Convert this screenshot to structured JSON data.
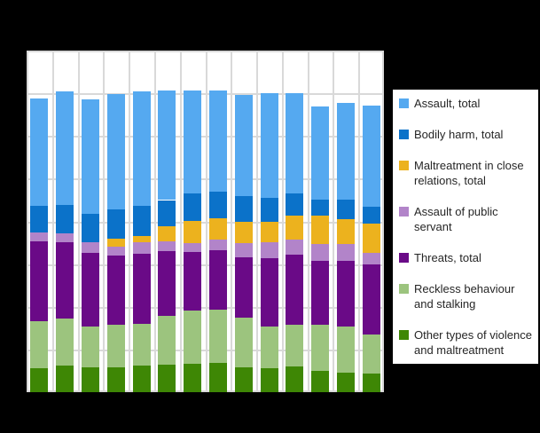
{
  "canvas": {
    "background_color": "#000000",
    "plot_background_color": "#ffffff",
    "gridline_color": "#d9d9d9",
    "legend_text_color": "#262626"
  },
  "chart_data": {
    "type": "bar",
    "stacked": true,
    "orientation": "vertical",
    "title": "",
    "xlabel": "",
    "ylabel": "",
    "categories": [
      "",
      "",
      "",
      "",
      "",
      "",
      "",
      "",
      "",
      "",
      "",
      "",
      "",
      ""
    ],
    "series": [
      {
        "name": "Assault, total",
        "color": "#55a9f0",
        "values": [
          12500,
          13300,
          13400,
          13500,
          13400,
          12800,
          12000,
          11800,
          11900,
          12250,
          11750,
          10850,
          11350,
          11800
        ]
      },
      {
        "name": "Bodily harm, total",
        "color": "#0b72c9",
        "values": [
          3100,
          3300,
          3300,
          3500,
          3500,
          3100,
          3200,
          3100,
          2950,
          2800,
          2600,
          1900,
          2250,
          2000
        ]
      },
      {
        "name": "Maltreatment in close relations, total",
        "color": "#ecb21e",
        "values": [
          0,
          0,
          0,
          900,
          700,
          1700,
          2600,
          2550,
          2550,
          2450,
          2800,
          3300,
          2950,
          3400
        ]
      },
      {
        "name": "Assault of public servant",
        "color": "#b284c9",
        "values": [
          1100,
          1000,
          1200,
          1000,
          1400,
          1200,
          1050,
          1200,
          1650,
          1900,
          1750,
          2000,
          2000,
          1400
        ]
      },
      {
        "name": "Threats, total",
        "color": "#6a0a87",
        "values": [
          9300,
          9000,
          8700,
          8200,
          8200,
          7600,
          6900,
          7000,
          7100,
          8000,
          8150,
          7550,
          7700,
          8200
        ]
      },
      {
        "name": "Reckless behaviour and stalking",
        "color": "#9cc47e",
        "values": [
          5500,
          5500,
          4700,
          4900,
          4900,
          5700,
          6250,
          6250,
          5750,
          4800,
          4950,
          5400,
          5400,
          4600
        ]
      },
      {
        "name": "Other types of violence and maltreatment",
        "color": "#3e8705",
        "values": [
          2850,
          3100,
          2950,
          2950,
          3100,
          3200,
          3300,
          3400,
          2950,
          2850,
          3000,
          2450,
          2250,
          2150
        ]
      }
    ],
    "stack_order": "series listed top-of-stack first; last series is at the bottom of each bar",
    "ylim": [
      0,
      40000
    ],
    "gridline_step": 5000,
    "grid": true,
    "x_tick_labels_visible": false,
    "y_tick_labels_visible": false,
    "legend_position": "right"
  }
}
